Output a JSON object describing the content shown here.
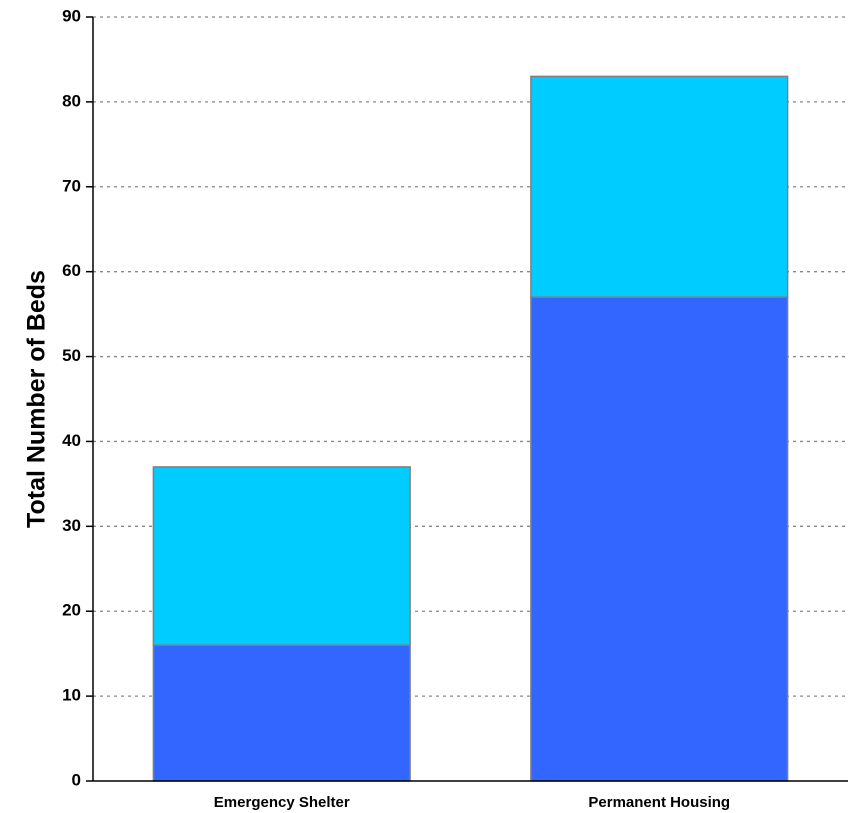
{
  "chart_data": {
    "type": "bar",
    "stacked": true,
    "title": "",
    "xlabel": "",
    "ylabel": "Total Number of Beds",
    "ylim": [
      0,
      90
    ],
    "yticks": [
      0,
      10,
      20,
      30,
      40,
      50,
      60,
      70,
      80,
      90
    ],
    "grid": true,
    "categories": [
      "Emergency Shelter",
      "Permanent Housing"
    ],
    "series": [
      {
        "color": "#3366ff",
        "values": [
          16,
          57
        ]
      },
      {
        "color": "#00ccff",
        "values": [
          21,
          26
        ]
      }
    ]
  }
}
